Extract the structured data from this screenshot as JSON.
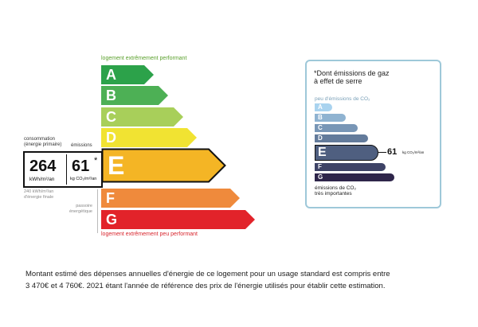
{
  "dpe": {
    "top_label": "logement extrêmement performant",
    "bottom_label": "logement extrêmement peu performant",
    "classes": [
      {
        "letter": "A",
        "color": "#2ca24a"
      },
      {
        "letter": "B",
        "color": "#4db055"
      },
      {
        "letter": "C",
        "color": "#a8cf5a"
      },
      {
        "letter": "D",
        "color": "#f1e332"
      },
      {
        "letter": "E",
        "color": "#f4b525"
      },
      {
        "letter": "F",
        "color": "#ef8a3c"
      },
      {
        "letter": "G",
        "color": "#e2232a"
      }
    ],
    "current_class": "E",
    "consumption_header_1": "consommation",
    "consumption_header_2": "(énergie primaire)",
    "emissions_header": "émissions",
    "consumption_value": "264",
    "consumption_unit": "kWh/m²/an",
    "emissions_value": "61",
    "emissions_star": "*",
    "emissions_unit": "kg CO₂/m²/an",
    "final_energy_1": "240 kWh/m²/an",
    "final_energy_2": "d'énergie finale",
    "passoire_1": "passoire",
    "passoire_2": "énergétique"
  },
  "co2": {
    "title_1": "*Dont émissions de gaz",
    "title_2": "à effet de serre",
    "low_label": "peu d'émissions de CO₂",
    "high_label_1": "émissions de CO₂",
    "high_label_2": "très importantes",
    "classes": [
      {
        "letter": "A",
        "color": "#a9d3ef"
      },
      {
        "letter": "B",
        "color": "#8fb3d1"
      },
      {
        "letter": "C",
        "color": "#7896b6"
      },
      {
        "letter": "D",
        "color": "#637b9b"
      },
      {
        "letter": "E",
        "color": "#4f5f80"
      },
      {
        "letter": "F",
        "color": "#3e4366"
      },
      {
        "letter": "G",
        "color": "#2e254a"
      }
    ],
    "current_class": "E",
    "value": "61",
    "unit": "kg CO₂/m²/an"
  },
  "footer": {
    "line_1": "Montant estimé des dépenses annuelles d'énergie de ce logement pour un usage standard est compris entre",
    "line_2": "3 470€ et 4 760€. 2021 étant l'année de référence des prix de l'énergie utilisés pour établir cette estimation."
  }
}
